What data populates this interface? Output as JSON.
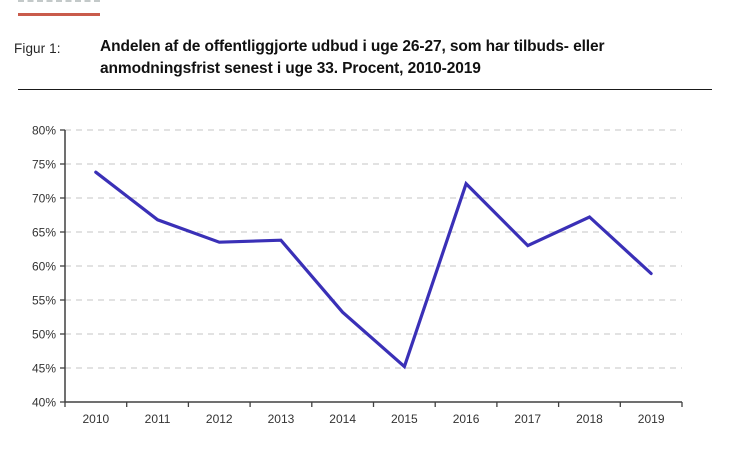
{
  "figure": {
    "label": "Figur 1:",
    "title": "Andelen af de offentliggjorte udbud i uge 26-27, som har tilbuds- eller anmodningsfrist senest i uge 33. Procent, 2010-2019"
  },
  "colors": {
    "line": "#3a30b7",
    "accent_red": "#c95b4b",
    "axis": "#404040",
    "grid": "#d8d8d8",
    "tick_label": "#333333",
    "divider": "#1a1a1a"
  },
  "chart_data": {
    "type": "line",
    "categories": [
      "2010",
      "2011",
      "2012",
      "2013",
      "2014",
      "2015",
      "2016",
      "2017",
      "2018",
      "2019"
    ],
    "values": [
      73.8,
      66.8,
      63.5,
      63.8,
      53.2,
      45.2,
      72.1,
      63.0,
      67.2,
      58.9
    ],
    "title": "Andelen af de offentliggjorte udbud i uge 26-27, som har tilbuds- eller anmodningsfrist senest i uge 33. Procent, 2010-2019",
    "xlabel": "",
    "ylabel": "",
    "ylim": [
      40,
      80
    ],
    "ytick_step": 5,
    "ytick_suffix": "%",
    "grid": "horizontal-dashed",
    "legend": "none",
    "line_width": 3.2
  }
}
